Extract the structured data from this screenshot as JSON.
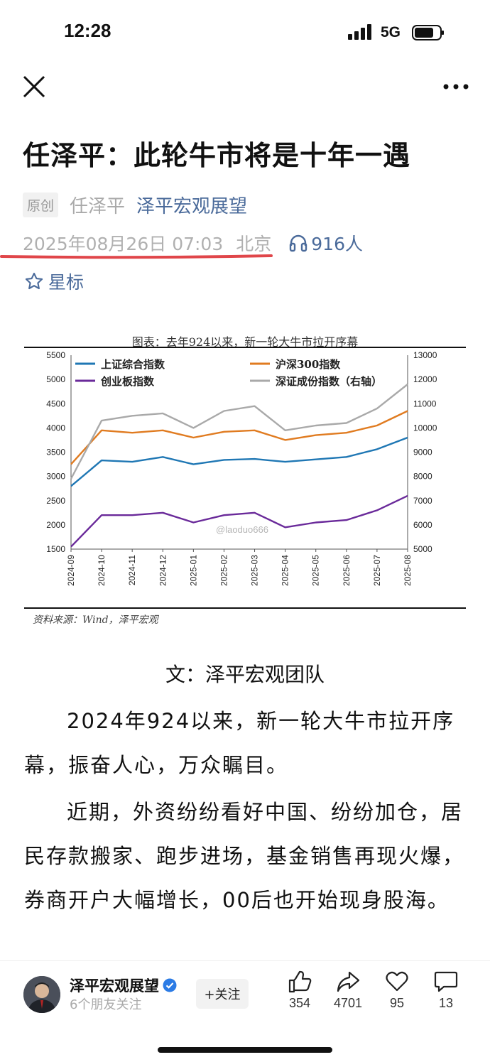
{
  "status_bar": {
    "time": "12:28",
    "network": "5G"
  },
  "nav": {
    "close_icon": "close-icon",
    "more_icon": "more-icon"
  },
  "article": {
    "title": "任泽平：此轮牛市将是十年一遇",
    "original_tag": "原创",
    "author": "任泽平",
    "account": "泽平宏观展望",
    "date": "2025年08月26日 07:03",
    "city": "北京",
    "listeners": "916人",
    "star_label": "星标",
    "byline": "文：泽平宏观团队",
    "paragraphs": [
      "2024年924以来，新一轮大牛市拉开序幕，振奋人心，万众瞩目。",
      "近期，外资纷纷看好中国、纷纷加仓，居民存款搬家、跑步进场，基金销售再现火爆，券商开户大幅增长，00后也开始现身股海。"
    ]
  },
  "chart_caption": "图表：去年924以来，新一轮大牛市拉开序幕",
  "chart_source": "资料来源：Wind，泽平宏观",
  "chart_watermark": "@laoduo666",
  "chart_data": {
    "type": "line",
    "x": [
      "2024-09",
      "2024-10",
      "2024-11",
      "2024-12",
      "2025-01",
      "2025-02",
      "2025-03",
      "2025-04",
      "2025-05",
      "2025-06",
      "2025-07",
      "2025-08"
    ],
    "left_ylim": [
      1500,
      5500
    ],
    "left_yticks": [
      1500,
      2000,
      2500,
      3000,
      3500,
      4000,
      4500,
      5000,
      5500
    ],
    "right_ylim": [
      5000,
      13000
    ],
    "right_yticks": [
      5000,
      6000,
      7000,
      8000,
      9000,
      10000,
      11000,
      12000,
      13000
    ],
    "series": [
      {
        "name": "上证综合指数",
        "axis": "left",
        "color": "#1f77b4",
        "values": [
          2800,
          3330,
          3300,
          3400,
          3250,
          3340,
          3360,
          3300,
          3350,
          3400,
          3560,
          3800
        ]
      },
      {
        "name": "沪深300指数",
        "axis": "left",
        "color": "#e07b20",
        "values": [
          3250,
          3950,
          3900,
          3950,
          3800,
          3920,
          3950,
          3750,
          3850,
          3900,
          4050,
          4350
        ]
      },
      {
        "name": "创业板指数",
        "axis": "left",
        "color": "#6a2a9a",
        "values": [
          1550,
          2200,
          2200,
          2250,
          2050,
          2200,
          2250,
          1950,
          2050,
          2100,
          2300,
          2600
        ]
      },
      {
        "name": "深证成份指数（右轴）",
        "axis": "right",
        "color": "#a9a9a9",
        "values": [
          7900,
          10300,
          10500,
          10600,
          10000,
          10700,
          10900,
          9900,
          10100,
          10200,
          10800,
          11800
        ]
      }
    ]
  },
  "footer": {
    "account_name": "泽平宏观展望",
    "friends_following": "6个朋友关注",
    "follow_label": "+关注",
    "likes": "354",
    "shares": "4701",
    "favorites": "95",
    "comments": "13"
  }
}
